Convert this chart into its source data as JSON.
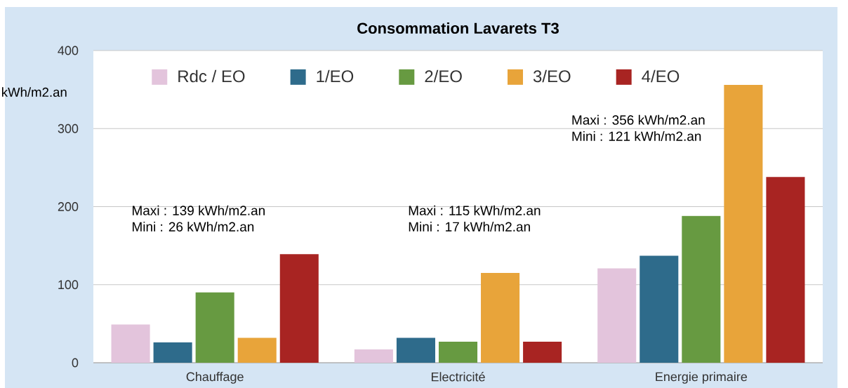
{
  "chart_data": {
    "type": "bar",
    "title": "Consommation Lavarets T3",
    "ylabel": "kWh/m2.an",
    "categories": [
      "Chauffage",
      "Electricité",
      "Energie primaire"
    ],
    "series": [
      {
        "name": "Rdc / EO",
        "color": "#e3c4dc",
        "values": [
          49,
          17,
          121
        ]
      },
      {
        "name": "1/EO",
        "color": "#2e6b8b",
        "values": [
          26,
          32,
          137
        ]
      },
      {
        "name": "2/EO",
        "color": "#679a41",
        "values": [
          90,
          27,
          188
        ]
      },
      {
        "name": "3/EO",
        "color": "#e8a43a",
        "values": [
          32,
          115,
          356
        ]
      },
      {
        "name": "4/EO",
        "color": "#a82422",
        "values": [
          139,
          27,
          238
        ]
      }
    ],
    "ylim": [
      0,
      400
    ],
    "yticks": [
      0,
      100,
      200,
      300,
      400
    ],
    "grid": "y",
    "legend": "top",
    "annotations": [
      "Maxi : 139 kWh/m2.an",
      "Mini : 26 kWh/m2.an",
      "Maxi : 115 kWh/m2.an",
      "Mini : 17 kWh/m2.an",
      "Maxi : 356 kWh/m2.an",
      "Mini : 121 kWh/m2.an"
    ]
  }
}
